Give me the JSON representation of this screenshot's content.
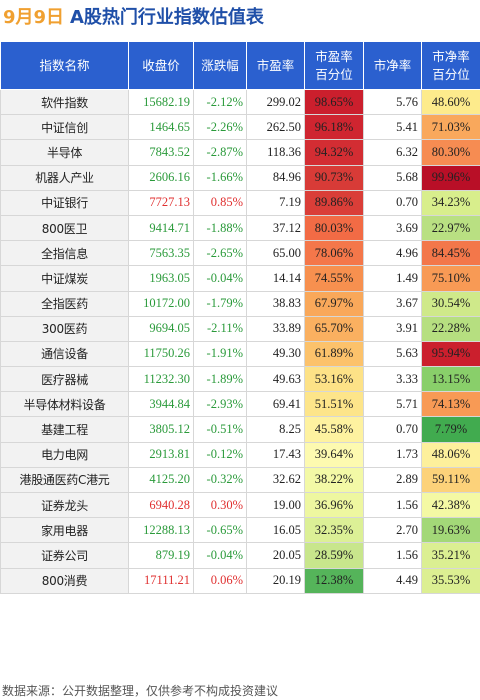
{
  "title": {
    "date": "9月9日",
    "main": "A股热门行业指数估值表"
  },
  "headers": [
    "指数名称",
    "收盘价",
    "涨跌幅",
    "市盈率",
    "市盈率\n百分位",
    "市净率",
    "市净率\n百分位"
  ],
  "colors": {
    "header_bg": "#2b60cf",
    "up": "#e03030",
    "down": "#2a9a3a"
  },
  "rows": [
    {
      "name": "软件指数",
      "close": "15682.19",
      "change": "-2.12%",
      "pe": "299.02",
      "pe_pct": "98.65%",
      "pb": "5.76",
      "pb_pct": "48.60%",
      "pe_color": "#cb1f2d",
      "pb_color": "#fdeb8c"
    },
    {
      "name": "中证信创",
      "close": "1464.65",
      "change": "-2.26%",
      "pe": "262.50",
      "pe_pct": "96.18%",
      "pb": "5.41",
      "pb_pct": "71.03%",
      "pe_color": "#cf2530",
      "pb_color": "#f9a85c"
    },
    {
      "name": "半导体",
      "close": "7843.52",
      "change": "-2.87%",
      "pe": "118.36",
      "pe_pct": "94.32%",
      "pb": "6.32",
      "pb_pct": "80.30%",
      "pe_color": "#d32d33",
      "pb_color": "#f68c52"
    },
    {
      "name": "机器人产业",
      "close": "2606.16",
      "change": "-1.66%",
      "pe": "84.96",
      "pe_pct": "90.73%",
      "pb": "5.68",
      "pb_pct": "99.96%",
      "pe_color": "#d83b37",
      "pb_color": "#b90f27"
    },
    {
      "name": "中证银行",
      "close": "7727.13",
      "change": "0.85%",
      "pe": "7.19",
      "pe_pct": "89.86%",
      "pb": "0.70",
      "pb_pct": "34.23%",
      "pe_color": "#da3e38",
      "pb_color": "#d8ee8c"
    },
    {
      "name": "800医卫",
      "close": "9414.71",
      "change": "-1.88%",
      "pe": "37.12",
      "pe_pct": "80.03%",
      "pb": "3.69",
      "pb_pct": "22.97%",
      "pe_color": "#f26b45",
      "pb_color": "#b9e082"
    },
    {
      "name": "全指信息",
      "close": "7563.35",
      "change": "-2.65%",
      "pe": "65.00",
      "pe_pct": "78.06%",
      "pb": "4.96",
      "pb_pct": "84.45%",
      "pe_color": "#f4774a",
      "pb_color": "#f3774a"
    },
    {
      "name": "中证煤炭",
      "close": "1963.05",
      "change": "-0.04%",
      "pe": "14.14",
      "pe_pct": "74.55%",
      "pb": "1.49",
      "pb_pct": "75.10%",
      "pe_color": "#f7904f",
      "pb_color": "#f89a55"
    },
    {
      "name": "全指医药",
      "close": "10172.00",
      "change": "-1.79%",
      "pe": "38.83",
      "pe_pct": "67.97%",
      "pb": "3.67",
      "pb_pct": "30.54%",
      "pe_color": "#f9a85a",
      "pb_color": "#cfe98a"
    },
    {
      "name": "300医药",
      "close": "9694.05",
      "change": "-2.11%",
      "pe": "33.89",
      "pe_pct": "65.70%",
      "pb": "3.91",
      "pb_pct": "22.28%",
      "pe_color": "#fab060",
      "pb_color": "#b6df80"
    },
    {
      "name": "通信设备",
      "close": "11750.26",
      "change": "-1.91%",
      "pe": "49.30",
      "pe_pct": "61.89%",
      "pb": "5.63",
      "pb_pct": "95.94%",
      "pe_color": "#fcc26b",
      "pb_color": "#cb1f2d"
    },
    {
      "name": "医疗器械",
      "close": "11232.30",
      "change": "-1.89%",
      "pe": "49.63",
      "pe_pct": "53.16%",
      "pb": "3.33",
      "pb_pct": "13.15%",
      "pe_color": "#fde287",
      "pb_color": "#89cf6a"
    },
    {
      "name": "半导体材料设备",
      "close": "3944.84",
      "change": "-2.93%",
      "pe": "69.41",
      "pe_pct": "51.51%",
      "pb": "5.71",
      "pb_pct": "74.13%",
      "pe_color": "#fde58a",
      "pb_color": "#f89a55"
    },
    {
      "name": "基建工程",
      "close": "3805.12",
      "change": "-0.51%",
      "pe": "8.25",
      "pe_pct": "45.58%",
      "pb": "0.70",
      "pb_pct": "7.79%",
      "pe_color": "#fef2a0",
      "pb_color": "#41ab4f"
    },
    {
      "name": "电力电网",
      "close": "2913.81",
      "change": "-0.12%",
      "pe": "17.43",
      "pe_pct": "39.64%",
      "pb": "1.73",
      "pb_pct": "48.06%",
      "pe_color": "#fdfab0",
      "pb_color": "#fdf09c"
    },
    {
      "name": "港股通医药C港元",
      "close": "4125.20",
      "change": "-0.32%",
      "pe": "32.62",
      "pe_pct": "38.22%",
      "pb": "2.89",
      "pb_pct": "59.11%",
      "pe_color": "#f3f9a6",
      "pb_color": "#fcd27a"
    },
    {
      "name": "证券龙头",
      "close": "6940.28",
      "change": "0.30%",
      "pe": "19.00",
      "pe_pct": "36.96%",
      "pb": "1.56",
      "pb_pct": "42.38%",
      "pe_color": "#eef7a0",
      "pb_color": "#f4f9a4"
    },
    {
      "name": "家用电器",
      "close": "12288.13",
      "change": "-0.65%",
      "pe": "16.05",
      "pe_pct": "32.35%",
      "pb": "2.70",
      "pb_pct": "19.63%",
      "pe_color": "#dcf096",
      "pb_color": "#a3d878"
    },
    {
      "name": "证券公司",
      "close": "879.19",
      "change": "-0.04%",
      "pe": "20.05",
      "pe_pct": "28.59%",
      "pb": "1.56",
      "pb_pct": "35.21%",
      "pe_color": "#c8e68c",
      "pb_color": "#dbef92"
    },
    {
      "name": "800消费",
      "close": "17111.21",
      "change": "0.06%",
      "pe": "20.19",
      "pe_pct": "12.38%",
      "pb": "4.49",
      "pb_pct": "35.53%",
      "pe_color": "#55b45a",
      "pb_color": "#dcef92"
    }
  ],
  "footer": "数据来源：公开数据整理，仅供参考不构成投资建议"
}
